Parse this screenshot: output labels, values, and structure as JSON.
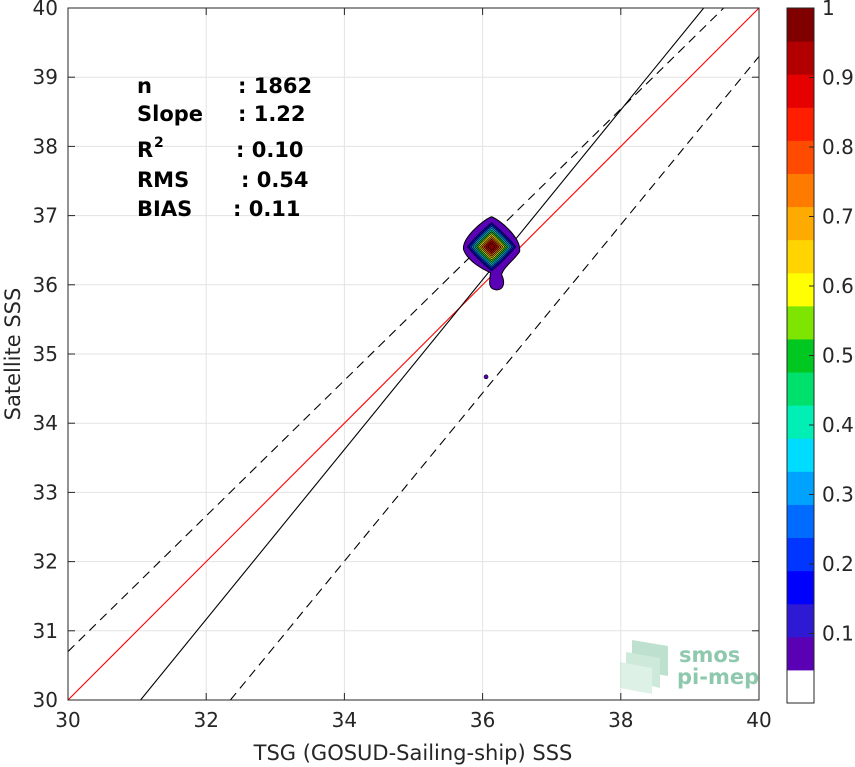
{
  "chart_data": {
    "type": "scatter",
    "xlabel": "TSG (GOSUD-Sailing-ship) SSS",
    "ylabel": "Satellite SSS",
    "xlim": [
      30,
      40
    ],
    "ylim": [
      30,
      40
    ],
    "xticks": [
      30,
      32,
      34,
      36,
      38,
      40
    ],
    "yticks": [
      30,
      31,
      32,
      33,
      34,
      35,
      36,
      37,
      38,
      39,
      40
    ],
    "grid": true,
    "stats": [
      {
        "label": "n",
        "value": ": 1862"
      },
      {
        "label": "Slope",
        "value": ": 1.22"
      },
      {
        "label": "R",
        "sup": "2",
        "value": ": 0.10"
      },
      {
        "label": "RMS",
        "value": ": 0.54"
      },
      {
        "label": "BIAS",
        "value": ": 0.11"
      }
    ],
    "lines": [
      {
        "role": "one-to-one",
        "color": "#ff0000",
        "x": [
          30,
          40
        ],
        "y": [
          30,
          40
        ]
      },
      {
        "role": "regression",
        "color": "#000000",
        "x": [
          31.05,
          39.2
        ],
        "y": [
          30,
          40
        ]
      },
      {
        "role": "upper-bound",
        "color": "#000000",
        "dash": true,
        "x": [
          30,
          40
        ],
        "y": [
          30.7,
          40.5
        ]
      },
      {
        "role": "lower-bound",
        "color": "#000000",
        "dash": true,
        "x": [
          32.35,
          40
        ],
        "y": [
          30,
          39.3
        ]
      }
    ],
    "density_center": {
      "x": 36.13,
      "y": 36.55
    },
    "outlier": {
      "x": 36.05,
      "y": 34.67
    },
    "colorbar": {
      "min": 0,
      "max": 1,
      "tick_labels": [
        "0.1",
        "0.2",
        "0.3",
        "0.4",
        "0.5",
        "0.6",
        "0.7",
        "0.8",
        "0.9",
        "1"
      ],
      "tick_values": [
        0.1,
        0.2,
        0.3,
        0.4,
        0.5,
        0.6,
        0.7,
        0.8,
        0.9,
        1.0
      ],
      "colors": [
        "#ffffff",
        "#5a00b5",
        "#2d1ad2",
        "#0000ff",
        "#0036ff",
        "#006cff",
        "#00a2ff",
        "#00dcff",
        "#00efb4",
        "#00e06c",
        "#00c820",
        "#7ee500",
        "#ffff00",
        "#ffd400",
        "#ffaa00",
        "#ff7b00",
        "#ff4b00",
        "#ff1e00",
        "#e60000",
        "#b20000",
        "#800000"
      ]
    },
    "watermark": {
      "line1": "smos",
      "line2": "pi-mep"
    }
  }
}
